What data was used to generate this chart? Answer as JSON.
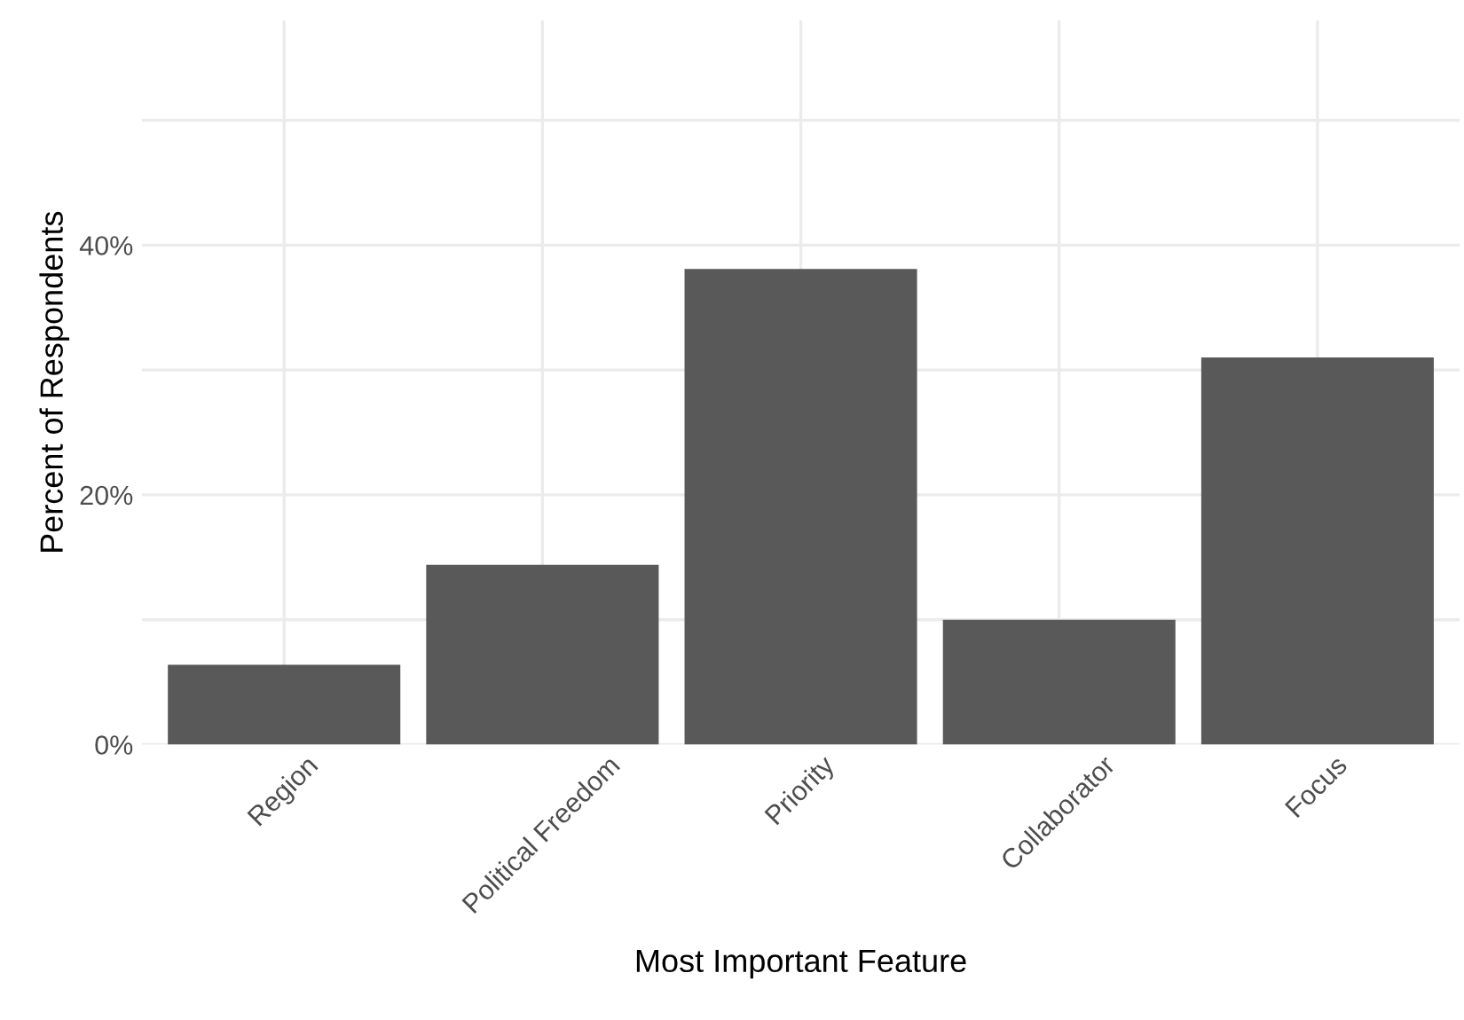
{
  "chart_data": {
    "type": "bar",
    "xlabel": "Most Important Feature",
    "ylabel": "Percent of Respondents",
    "categories": [
      "Region",
      "Political Freedom",
      "Priority",
      "Collaborator",
      "Focus"
    ],
    "values": [
      6.4,
      14.4,
      38.1,
      10.0,
      31.0
    ],
    "color": "#595959",
    "ylim": [
      0,
      58
    ],
    "yticks": [
      {
        "value": 0,
        "label": "0%"
      },
      {
        "value": 10,
        "label": null
      },
      {
        "value": 20,
        "label": "20%"
      },
      {
        "value": 30,
        "label": null
      },
      {
        "value": 40,
        "label": "40%"
      },
      {
        "value": 50,
        "label": null
      }
    ],
    "grid": true
  }
}
